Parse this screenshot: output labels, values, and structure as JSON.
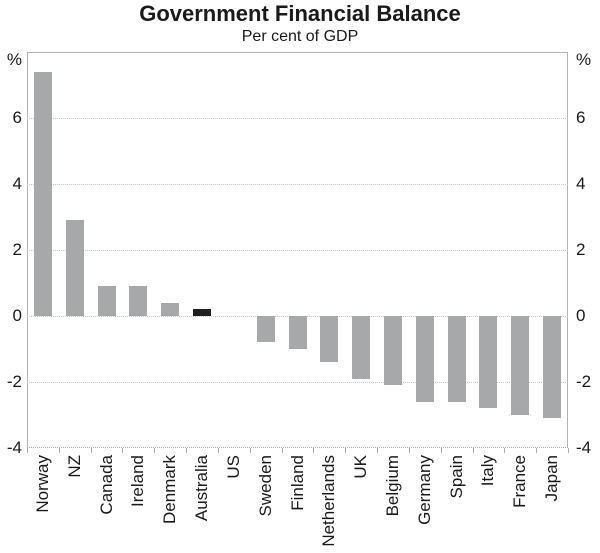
{
  "chart_data": {
    "type": "bar",
    "title": "Government Financial Balance",
    "subtitle": "Per cent of GDP",
    "unit": "%",
    "ylim": [
      -4,
      8
    ],
    "yticks": [
      6,
      4,
      2,
      0,
      -2,
      -4
    ],
    "grid_values": [
      6,
      4,
      2,
      0,
      -2
    ],
    "grid": "dotted-horizontal",
    "legend": "none",
    "categories": [
      "Norway",
      "NZ",
      "Canada",
      "Ireland",
      "Denmark",
      "Australia",
      "US",
      "Sweden",
      "Finland",
      "Netherlands",
      "UK",
      "Belgium",
      "Germany",
      "Spain",
      "Italy",
      "France",
      "Japan"
    ],
    "values": [
      7.4,
      2.9,
      0.9,
      0.9,
      0.4,
      0.2,
      0.0,
      -0.8,
      -1.0,
      -1.4,
      -1.9,
      -2.1,
      -2.6,
      -2.6,
      -2.8,
      -3.0,
      -3.1
    ],
    "highlight_category": "Australia",
    "colors": {
      "bar": "#a6a8aa",
      "highlight_bar": "#1f1f1f",
      "grid": "#c9c9c9",
      "frame": "#b3b3b3",
      "text": "#1a1a1a",
      "background": "#ffffff"
    }
  }
}
